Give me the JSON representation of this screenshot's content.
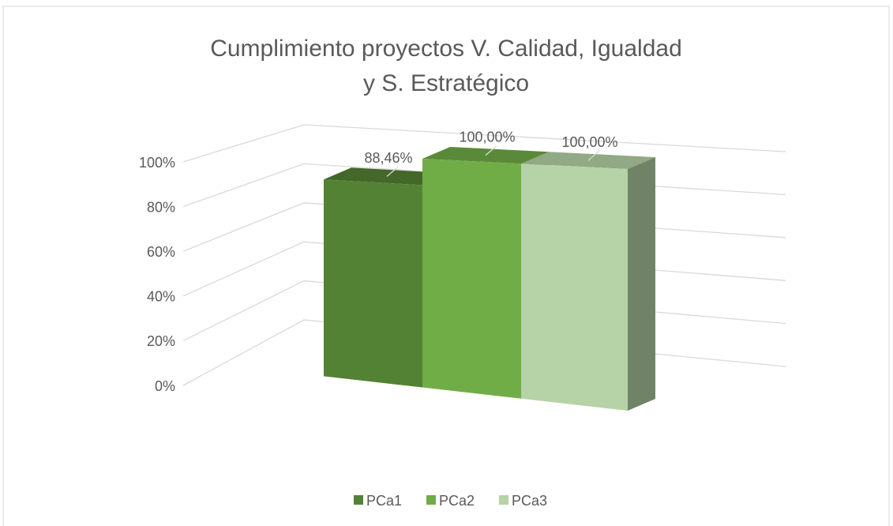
{
  "chart_data": {
    "type": "bar3d",
    "title": "Cumplimiento proyectos V. Calidad, Igualdad y S. Estratégico",
    "series": [
      {
        "name": "PCa1",
        "color": "#548235",
        "values": [
          88.46
        ],
        "value_labels": [
          "88,46%"
        ]
      },
      {
        "name": "PCa2",
        "color": "#70ad47",
        "values": [
          100
        ],
        "value_labels": [
          "100,00%"
        ]
      },
      {
        "name": "PCa3",
        "color": "#b5d3a6",
        "values": [
          100
        ],
        "value_labels": [
          "100,00%"
        ]
      }
    ],
    "ylim": [
      0,
      100
    ],
    "yticks": [
      {
        "value": 0,
        "label": "0%"
      },
      {
        "value": 20,
        "label": "20%"
      },
      {
        "value": 40,
        "label": "40%"
      },
      {
        "value": 60,
        "label": "60%"
      },
      {
        "value": 80,
        "label": "80%"
      },
      {
        "value": 100,
        "label": "100%"
      }
    ],
    "grid": true,
    "legend": "bottom"
  }
}
